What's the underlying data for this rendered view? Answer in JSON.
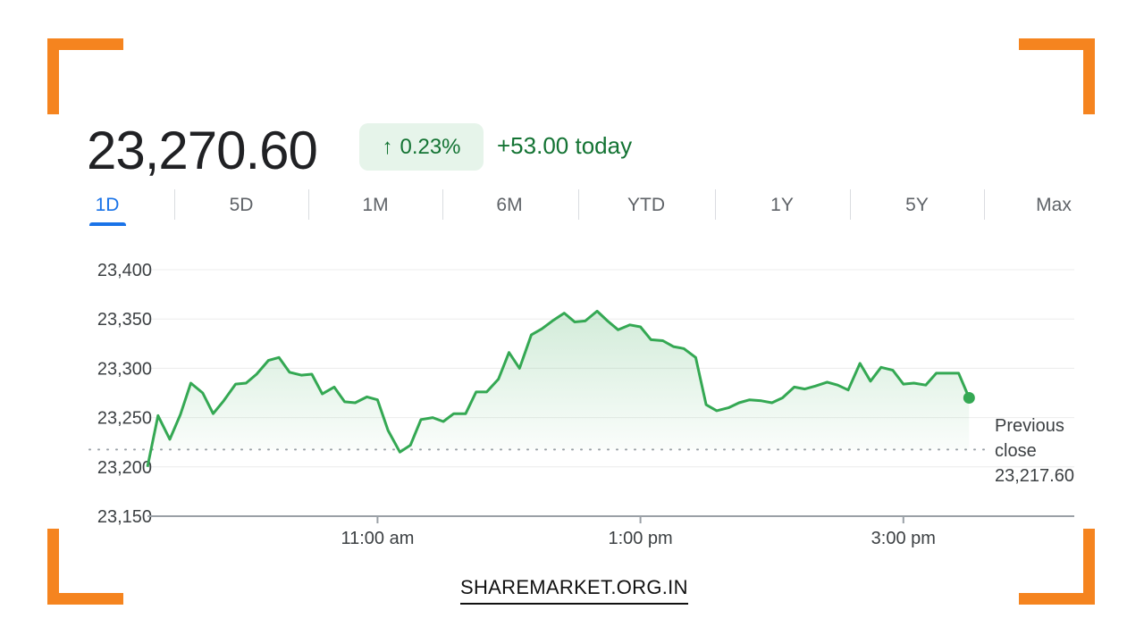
{
  "header": {
    "price": "23,270.60",
    "change_pct": "0.23%",
    "change_arrow": "↑",
    "change_today": "+53.00 today"
  },
  "tabs": [
    {
      "label": "1D",
      "active": true
    },
    {
      "label": "5D"
    },
    {
      "label": "1M"
    },
    {
      "label": "6M"
    },
    {
      "label": "YTD"
    },
    {
      "label": "1Y"
    },
    {
      "label": "5Y"
    },
    {
      "label": "Max"
    }
  ],
  "previous_close": {
    "line1": "Previous",
    "line2": "close",
    "value_label": "23,217.60"
  },
  "footer": {
    "site": "SHAREMARKET.ORG.IN"
  },
  "colors": {
    "line": "#34a853",
    "positive_text": "#137333",
    "badge_bg": "#e6f4ea",
    "accent": "#1a73e8",
    "frame": "#f5841f"
  },
  "chart_data": {
    "type": "line",
    "title": "",
    "xlabel": "",
    "ylabel": "",
    "ylim": [
      23150,
      23400
    ],
    "y_ticks": [
      23400,
      23350,
      23300,
      23250,
      23200,
      23150
    ],
    "y_tick_labels": [
      "23,400",
      "23,350",
      "23,300",
      "23,250",
      "23,200",
      "23,150"
    ],
    "x_range": [
      9.25,
      16.3
    ],
    "x_ticks": [
      {
        "value": 11,
        "label": "11:00 am"
      },
      {
        "value": 13,
        "label": "1:00 pm"
      },
      {
        "value": 15,
        "label": "3:00 pm"
      }
    ],
    "previous_close": 23217.6,
    "series": [
      {
        "x": [
          9.25,
          9.33,
          9.42,
          9.5,
          9.58,
          9.67,
          9.75,
          9.83,
          9.92,
          10.0,
          10.08,
          10.17,
          10.25,
          10.33,
          10.42,
          10.5,
          10.58,
          10.67,
          10.75,
          10.83,
          10.92,
          11.0,
          11.08,
          11.17,
          11.25,
          11.33,
          11.42,
          11.5,
          11.58,
          11.67,
          11.75,
          11.83,
          11.92,
          12.0,
          12.08,
          12.17,
          12.25,
          12.33,
          12.42,
          12.5,
          12.58,
          12.67,
          12.75,
          12.83,
          12.92,
          13.0,
          13.08,
          13.17,
          13.25,
          13.33,
          13.42,
          13.5,
          13.58,
          13.67,
          13.75,
          13.83,
          13.92,
          14.0,
          14.08,
          14.17,
          14.25,
          14.33,
          14.42,
          14.5,
          14.58,
          14.67,
          14.75,
          14.83,
          14.92,
          15.0,
          15.08,
          15.17,
          15.25,
          15.33,
          15.42,
          15.5
        ],
        "values": [
          23200,
          23252,
          23228,
          23253,
          23285,
          23275,
          23254,
          23267,
          23284,
          23285,
          23294,
          23308,
          23311,
          23296,
          23293,
          23294,
          23274,
          23281,
          23266,
          23265,
          23271,
          23268,
          23237,
          23215,
          23222,
          23248,
          23250,
          23246,
          23254,
          23254,
          23276,
          23276,
          23289,
          23316,
          23300,
          23334,
          23340,
          23348,
          23356,
          23347,
          23348,
          23358,
          23348,
          23339,
          23344,
          23342,
          23329,
          23328,
          23322,
          23320,
          23311,
          23263,
          23257,
          23260,
          23265,
          23268,
          23267,
          23265,
          23270,
          23281,
          23279,
          23282,
          23286,
          23283,
          23278,
          23305,
          23287,
          23301,
          23298,
          23284,
          23285,
          23283,
          23295,
          23295,
          23295,
          23270
        ]
      }
    ]
  }
}
